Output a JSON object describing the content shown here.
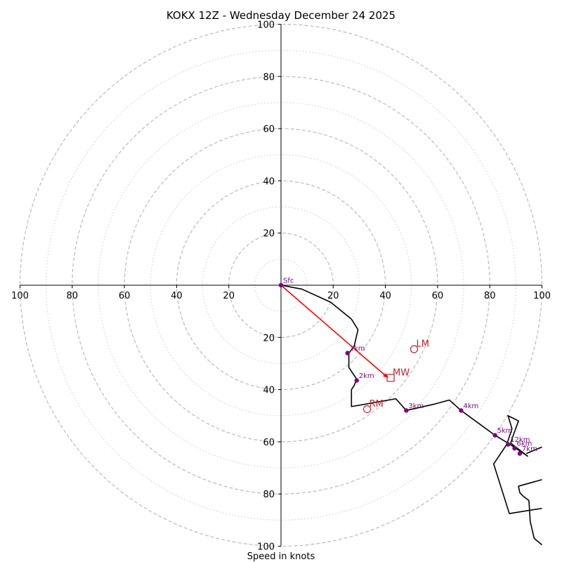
{
  "chart_data": {
    "type": "hodograph",
    "title": "KOKX 12Z - Wednesday December 24 2025",
    "xlabel": "Speed in knots",
    "xlim": [
      -100,
      100
    ],
    "ylim": [
      -100,
      100
    ],
    "x_ticks": [
      "100",
      "80",
      "60",
      "40",
      "20",
      "20",
      "40",
      "60",
      "80",
      "100"
    ],
    "y_ticks": [
      "100",
      "80",
      "60",
      "40",
      "20",
      "20",
      "40",
      "60",
      "80",
      "100"
    ],
    "rings_dashed": [
      20,
      40,
      60,
      80,
      100
    ],
    "rings_dotted": [
      10,
      30,
      50,
      70,
      90
    ],
    "colors": {
      "trace": "#000000",
      "height_marker": "#800080",
      "storm": "#c0242a",
      "mean_wind_arrow": "#ff0000",
      "grid": "#bbbbbb"
    },
    "trace": [
      [
        0,
        0
      ],
      [
        8,
        -1.5
      ],
      [
        19,
        -6.5
      ],
      [
        27,
        -13
      ],
      [
        29.5,
        -17
      ],
      [
        28,
        -23.5
      ],
      [
        26,
        -26
      ],
      [
        26,
        -31.5
      ],
      [
        29,
        -36
      ],
      [
        28,
        -38.5
      ],
      [
        27,
        -40
      ],
      [
        27,
        -46.5
      ],
      [
        44,
        -43.5
      ],
      [
        48,
        -48
      ],
      [
        59,
        -45.5
      ],
      [
        64.5,
        -44
      ],
      [
        69,
        -48
      ],
      [
        82,
        -57.5
      ],
      [
        87,
        -60.5
      ],
      [
        90,
        -62.5
      ],
      [
        93,
        -64.5
      ],
      [
        94.5,
        -65.5
      ],
      [
        88,
        -60.5
      ],
      [
        89,
        -57.5
      ],
      [
        91,
        -52
      ],
      [
        87,
        -50
      ],
      [
        88.5,
        -55
      ],
      [
        86.5,
        -61
      ],
      [
        81.5,
        -68.5
      ],
      [
        87.5,
        -87.5
      ],
      [
        100,
        -85.5
      ]
    ],
    "trace_extra": [
      [
        100,
        -74.5
      ],
      [
        91,
        -77
      ],
      [
        91.5,
        -79.5
      ],
      [
        93,
        -81
      ],
      [
        95,
        -82.5
      ],
      [
        95.5,
        -90.5
      ],
      [
        97,
        -97
      ],
      [
        100,
        -99.5
      ]
    ],
    "trace_extra2": [
      [
        100,
        -62
      ],
      [
        94,
        -64.5
      ]
    ],
    "height_markers": [
      {
        "label": "Sfc",
        "u": 0,
        "v": 0
      },
      {
        "label": "1km",
        "u": 25.5,
        "v": -26
      },
      {
        "label": "2km",
        "u": 29,
        "v": -36.5
      },
      {
        "label": "3km",
        "u": 48,
        "v": -48
      },
      {
        "label": "4km",
        "u": 69,
        "v": -48
      },
      {
        "label": "5km",
        "u": 82,
        "v": -57.5
      },
      {
        "label": "12km",
        "u": 87,
        "v": -61
      },
      {
        "label": "6km",
        "u": 89.5,
        "v": -62.5
      },
      {
        "label": "7km",
        "u": 91.5,
        "v": -64.5
      }
    ],
    "storm_motion": [
      {
        "label": "LM",
        "u": 51,
        "v": -24.5,
        "marker": "circle"
      },
      {
        "label": "MW",
        "u": 42,
        "v": -35.5,
        "marker": "square"
      },
      {
        "label": "RM",
        "u": 33,
        "v": -47.5,
        "marker": "circle"
      }
    ],
    "mean_wind_arrow": {
      "from": [
        0,
        0
      ],
      "to": [
        41,
        -35.5
      ]
    }
  }
}
